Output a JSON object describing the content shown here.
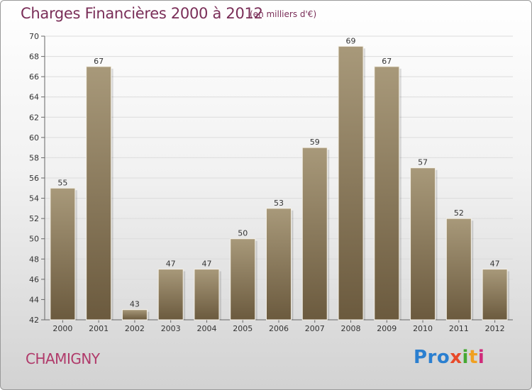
{
  "header": {
    "title": "Charges Financières 2000 à 2012",
    "subtitle": "(en milliers d'€)"
  },
  "footer": {
    "city": "CHAMIGNY",
    "logo_parts": [
      "Pro",
      "x",
      "i",
      "t",
      "i"
    ]
  },
  "colors": {
    "bar_top": "#a8997a",
    "bar_bottom": "#6b5a3e",
    "title": "#7a2e58",
    "city": "#b03a6a"
  },
  "chart_data": {
    "type": "bar",
    "title": "Charges Financières 2000 à 2012",
    "subtitle": "(en milliers d'€)",
    "categories": [
      "2000",
      "2001",
      "2002",
      "2003",
      "2004",
      "2005",
      "2006",
      "2007",
      "2008",
      "2009",
      "2010",
      "2011",
      "2012"
    ],
    "values": [
      55,
      67,
      43,
      47,
      47,
      50,
      53,
      59,
      69,
      67,
      57,
      52,
      47
    ],
    "ylim": [
      42,
      70
    ],
    "yticks": [
      42,
      44,
      46,
      48,
      50,
      52,
      54,
      56,
      58,
      60,
      62,
      64,
      66,
      68,
      70
    ],
    "grid": true,
    "xlabel": "",
    "ylabel": ""
  }
}
